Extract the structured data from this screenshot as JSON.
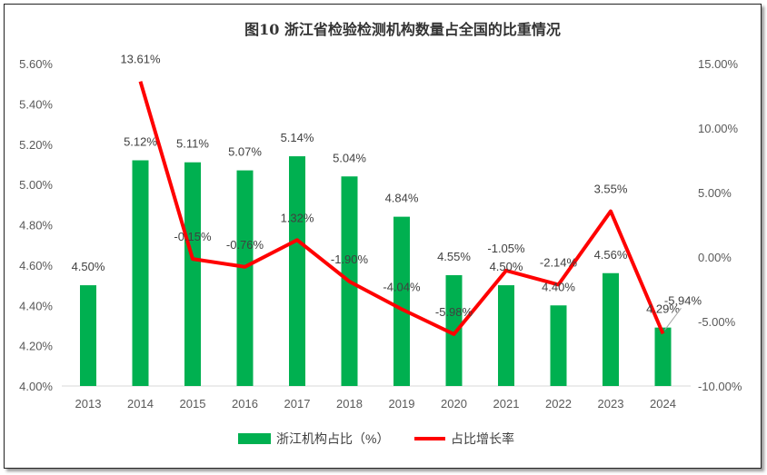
{
  "chart_data": {
    "type": "bar+line",
    "title": "图10  浙江省检验检测机构数量占全国的比重情况",
    "categories": [
      "2013",
      "2014",
      "2015",
      "2016",
      "2017",
      "2018",
      "2019",
      "2020",
      "2021",
      "2022",
      "2023",
      "2024"
    ],
    "series": [
      {
        "name": "浙江机构占比（%）",
        "type": "bar",
        "axis": "left",
        "color": "#00B050",
        "values": [
          4.5,
          5.12,
          5.11,
          5.07,
          5.14,
          5.04,
          4.84,
          4.55,
          4.5,
          4.4,
          4.56,
          4.29
        ],
        "labels": [
          "4.50%",
          "5.12%",
          "5.11%",
          "5.07%",
          "5.14%",
          "5.04%",
          "4.84%",
          "4.55%",
          "4.50%",
          "4.40%",
          "4.56%",
          "4.29%"
        ]
      },
      {
        "name": "占比增长率",
        "type": "line",
        "axis": "right",
        "color": "#FF0000",
        "values": [
          null,
          13.61,
          -0.15,
          -0.76,
          1.32,
          -1.9,
          -4.04,
          -5.98,
          -1.05,
          -2.14,
          3.55,
          -5.94
        ],
        "labels": [
          "",
          "13.61%",
          "-0.15%",
          "-0.76%",
          "1.32%",
          "-1.90%",
          "-4.04%",
          "-5.98%",
          "-1.05%",
          "-2.14%",
          "3.55%",
          "-5.94%"
        ]
      }
    ],
    "y_left": {
      "range": [
        4.0,
        5.6
      ],
      "ticks": [
        "4.00%",
        "4.20%",
        "4.40%",
        "4.60%",
        "4.80%",
        "5.00%",
        "5.20%",
        "5.40%",
        "5.60%"
      ]
    },
    "y_right": {
      "range": [
        -10,
        15
      ],
      "ticks": [
        "-10.00%",
        "-5.00%",
        "0.00%",
        "5.00%",
        "10.00%",
        "15.00%"
      ]
    },
    "grid": false,
    "legend": "bottom"
  }
}
